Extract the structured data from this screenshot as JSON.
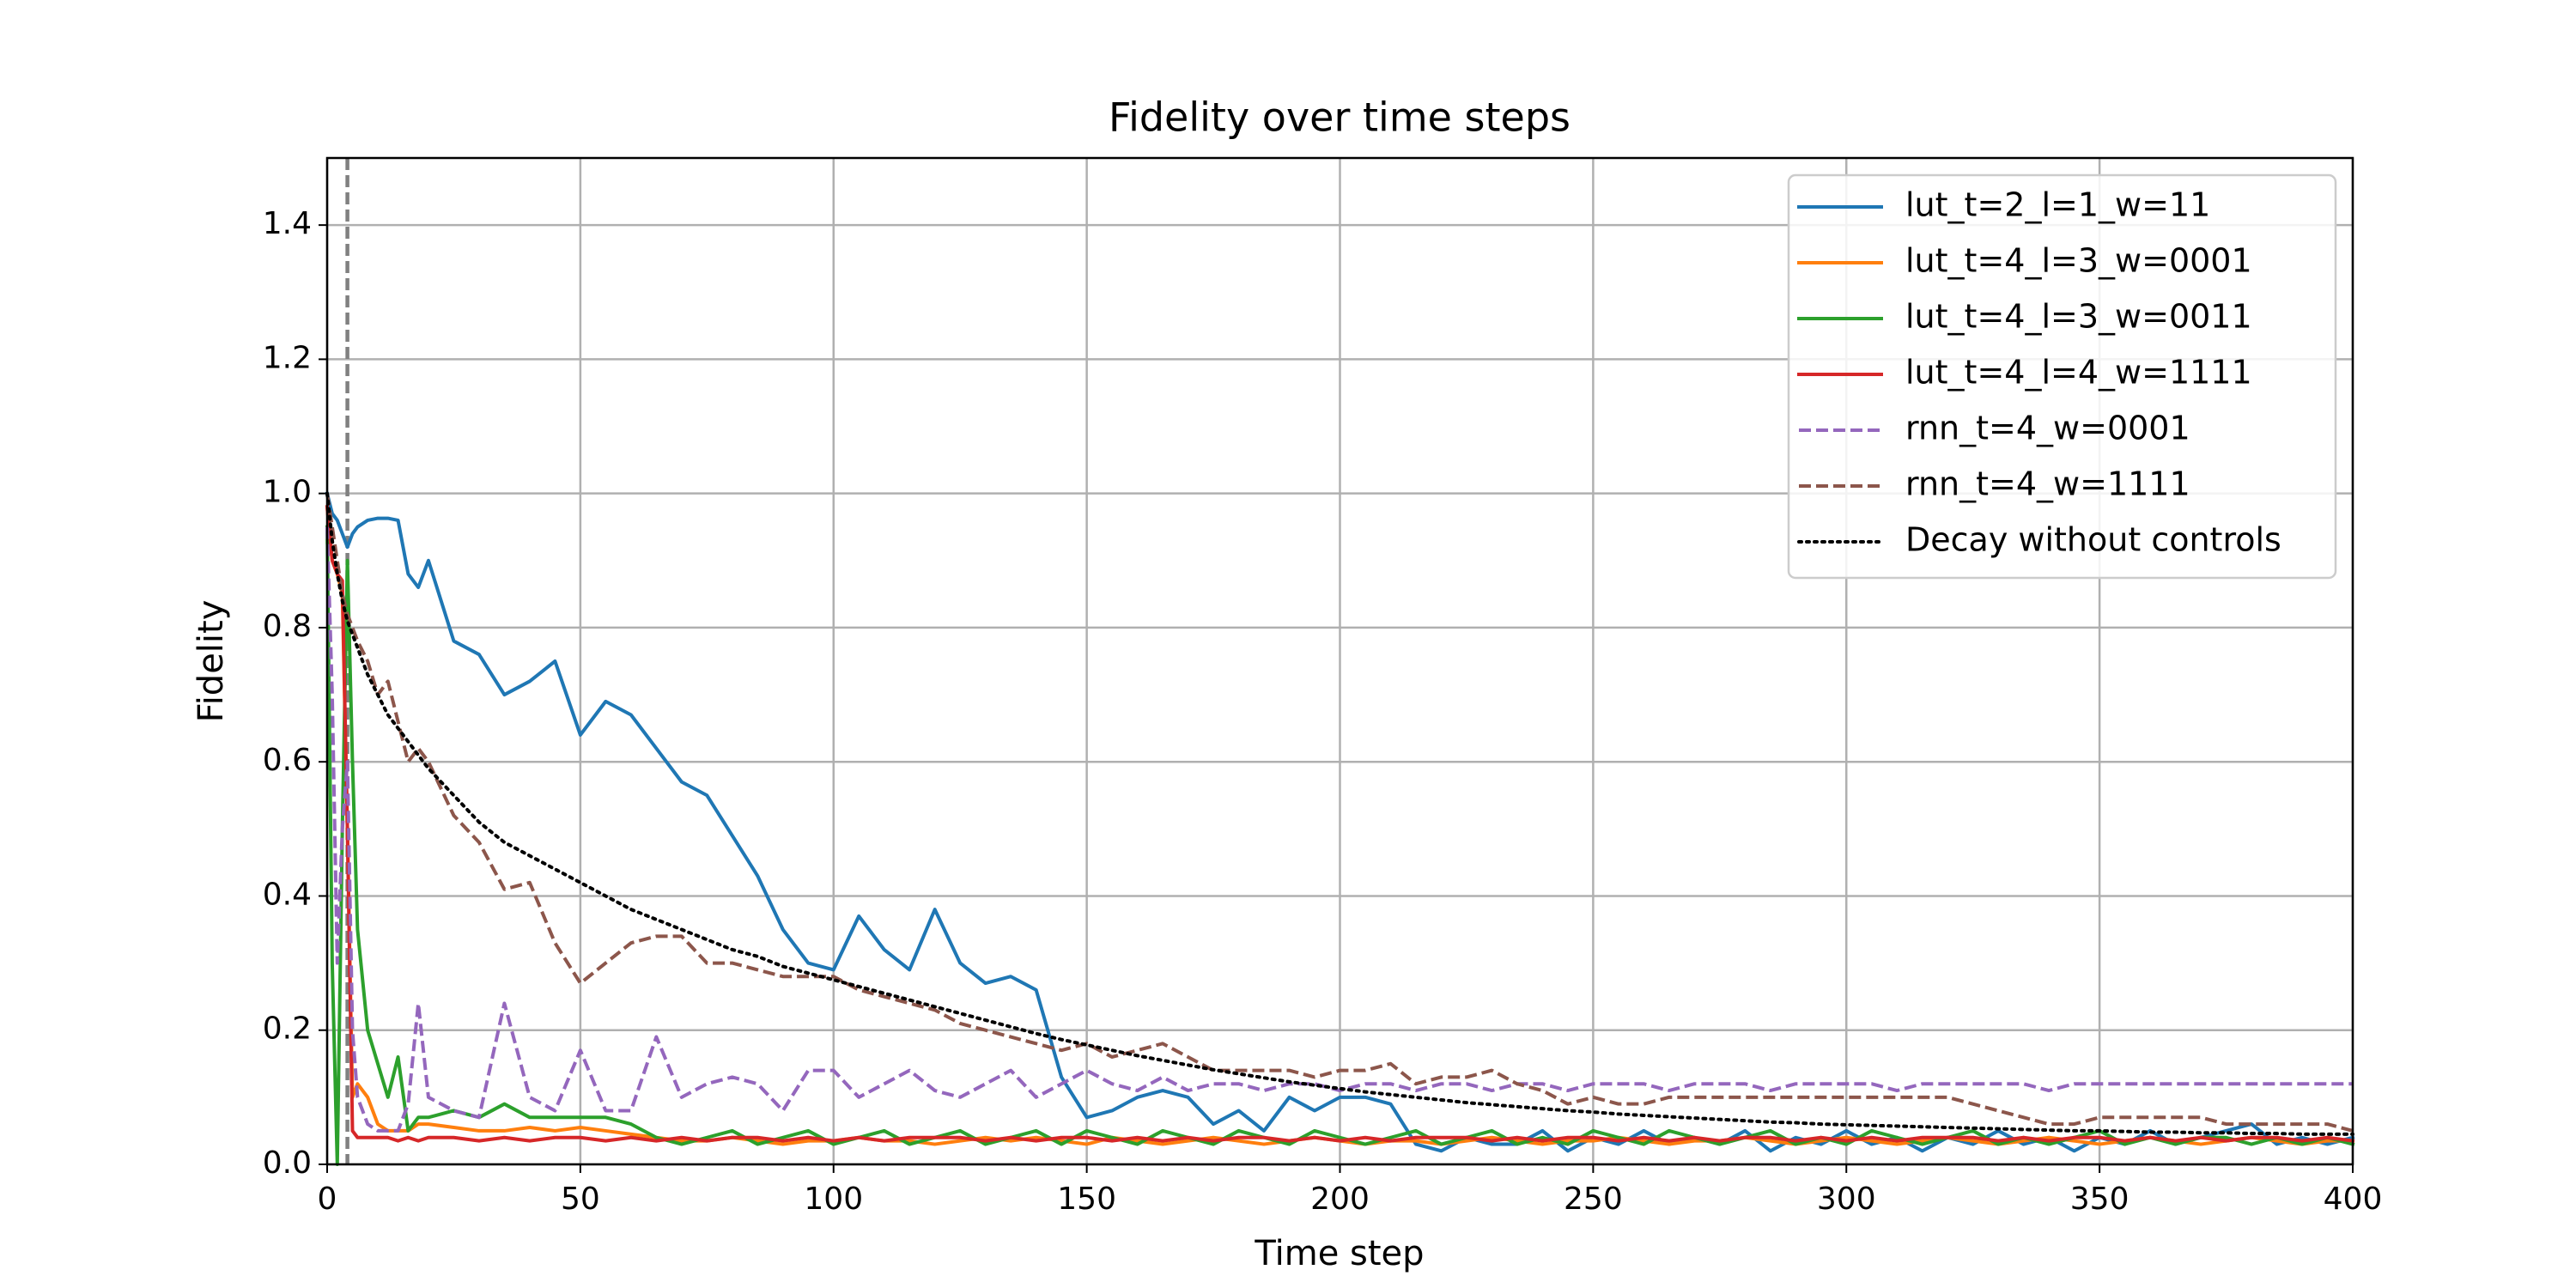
{
  "chart_data": {
    "type": "line",
    "title": "Fidelity over time steps",
    "x_label": "Time step",
    "y_label": "Fidelity",
    "xlim": [
      0,
      400
    ],
    "xticks": [
      0,
      50,
      100,
      150,
      200,
      250,
      300,
      350,
      400
    ],
    "ylim": [
      0,
      1.5
    ],
    "yticks": [
      {
        "value": 0,
        "label": "0.0"
      },
      0.2,
      0.4,
      0.6,
      0.8,
      {
        "value": 1,
        "label": "1.0"
      },
      1.2,
      1.4
    ],
    "grid": true,
    "legend": "upper right",
    "vline": 4,
    "x": [
      0,
      1,
      2,
      3,
      4,
      5,
      6,
      8,
      10,
      12,
      14,
      16,
      18,
      20,
      25,
      30,
      35,
      40,
      45,
      50,
      55,
      60,
      65,
      70,
      75,
      80,
      85,
      90,
      95,
      100,
      105,
      110,
      115,
      120,
      125,
      130,
      135,
      140,
      145,
      150,
      155,
      160,
      165,
      170,
      175,
      180,
      185,
      190,
      195,
      200,
      205,
      210,
      215,
      220,
      225,
      230,
      235,
      240,
      245,
      250,
      255,
      260,
      265,
      270,
      275,
      280,
      285,
      290,
      295,
      300,
      305,
      310,
      315,
      320,
      325,
      330,
      335,
      340,
      345,
      350,
      355,
      360,
      365,
      370,
      375,
      380,
      385,
      390,
      395,
      400
    ],
    "series": [
      {
        "name": "lut_t=2_l=1_w=11",
        "color": "#1f77b4",
        "linestyle": "solid",
        "values": [
          1.0,
          0.97,
          0.96,
          0.94,
          0.92,
          0.94,
          0.95,
          0.96,
          0.963,
          0.963,
          0.96,
          0.88,
          0.86,
          0.9,
          0.78,
          0.76,
          0.7,
          0.72,
          0.75,
          0.64,
          0.69,
          0.67,
          0.62,
          0.57,
          0.55,
          0.49,
          0.43,
          0.35,
          0.3,
          0.29,
          0.37,
          0.32,
          0.29,
          0.38,
          0.3,
          0.27,
          0.28,
          0.26,
          0.13,
          0.07,
          0.08,
          0.1,
          0.11,
          0.1,
          0.06,
          0.08,
          0.05,
          0.1,
          0.08,
          0.1,
          0.1,
          0.09,
          0.03,
          0.02,
          0.04,
          0.03,
          0.03,
          0.05,
          0.02,
          0.04,
          0.03,
          0.05,
          0.03,
          0.04,
          0.03,
          0.05,
          0.02,
          0.04,
          0.03,
          0.05,
          0.03,
          0.04,
          0.02,
          0.04,
          0.03,
          0.05,
          0.03,
          0.04,
          0.02,
          0.04,
          0.03,
          0.05,
          0.03,
          0.04,
          0.05,
          0.06,
          0.03,
          0.04,
          0.03,
          0.04
        ]
      },
      {
        "name": "lut_t=4_l=3_w=0001",
        "color": "#ff7f0e",
        "linestyle": "solid",
        "values": [
          0.98,
          0.9,
          0.88,
          0.85,
          0.5,
          0.1,
          0.12,
          0.1,
          0.06,
          0.05,
          0.05,
          0.05,
          0.06,
          0.06,
          0.055,
          0.05,
          0.05,
          0.055,
          0.05,
          0.055,
          0.05,
          0.045,
          0.04,
          0.035,
          0.035,
          0.04,
          0.035,
          0.03,
          0.035,
          0.035,
          0.04,
          0.035,
          0.035,
          0.03,
          0.035,
          0.04,
          0.035,
          0.04,
          0.035,
          0.03,
          0.04,
          0.035,
          0.03,
          0.035,
          0.04,
          0.035,
          0.03,
          0.035,
          0.04,
          0.035,
          0.03,
          0.035,
          0.035,
          0.03,
          0.035,
          0.04,
          0.035,
          0.03,
          0.035,
          0.035,
          0.04,
          0.035,
          0.03,
          0.035,
          0.035,
          0.04,
          0.035,
          0.03,
          0.035,
          0.04,
          0.035,
          0.03,
          0.035,
          0.04,
          0.035,
          0.03,
          0.035,
          0.04,
          0.035,
          0.03,
          0.035,
          0.04,
          0.035,
          0.03,
          0.035,
          0.04,
          0.035,
          0.03,
          0.035,
          0.035
        ]
      },
      {
        "name": "lut_t=4_l=3_w=0011",
        "color": "#2ca02c",
        "linestyle": "solid",
        "values": [
          0.95,
          0.3,
          0.0,
          0.5,
          0.9,
          0.6,
          0.35,
          0.2,
          0.15,
          0.1,
          0.16,
          0.05,
          0.07,
          0.07,
          0.08,
          0.07,
          0.09,
          0.07,
          0.07,
          0.07,
          0.07,
          0.06,
          0.04,
          0.03,
          0.04,
          0.05,
          0.03,
          0.04,
          0.05,
          0.03,
          0.04,
          0.05,
          0.03,
          0.04,
          0.05,
          0.03,
          0.04,
          0.05,
          0.03,
          0.05,
          0.04,
          0.03,
          0.05,
          0.04,
          0.03,
          0.05,
          0.04,
          0.03,
          0.05,
          0.04,
          0.03,
          0.04,
          0.05,
          0.03,
          0.04,
          0.05,
          0.03,
          0.04,
          0.03,
          0.05,
          0.04,
          0.03,
          0.05,
          0.04,
          0.03,
          0.04,
          0.05,
          0.03,
          0.04,
          0.03,
          0.05,
          0.04,
          0.03,
          0.04,
          0.05,
          0.03,
          0.04,
          0.03,
          0.04,
          0.05,
          0.03,
          0.04,
          0.03,
          0.04,
          0.04,
          0.03,
          0.04,
          0.03,
          0.04,
          0.03
        ]
      },
      {
        "name": "lut_t=4_l=4_w=1111",
        "color": "#d62728",
        "linestyle": "solid",
        "values": [
          0.98,
          0.9,
          0.88,
          0.87,
          0.5,
          0.05,
          0.04,
          0.04,
          0.04,
          0.04,
          0.035,
          0.04,
          0.035,
          0.04,
          0.04,
          0.035,
          0.04,
          0.035,
          0.04,
          0.04,
          0.035,
          0.04,
          0.035,
          0.04,
          0.035,
          0.04,
          0.04,
          0.035,
          0.04,
          0.035,
          0.04,
          0.035,
          0.04,
          0.04,
          0.04,
          0.035,
          0.04,
          0.035,
          0.04,
          0.04,
          0.035,
          0.04,
          0.035,
          0.04,
          0.035,
          0.04,
          0.04,
          0.035,
          0.04,
          0.035,
          0.04,
          0.035,
          0.04,
          0.04,
          0.04,
          0.035,
          0.04,
          0.035,
          0.04,
          0.04,
          0.035,
          0.04,
          0.035,
          0.04,
          0.035,
          0.04,
          0.04,
          0.035,
          0.04,
          0.035,
          0.04,
          0.035,
          0.04,
          0.04,
          0.04,
          0.035,
          0.04,
          0.035,
          0.04,
          0.04,
          0.035,
          0.04,
          0.035,
          0.04,
          0.035,
          0.04,
          0.04,
          0.035,
          0.04,
          0.035
        ]
      },
      {
        "name": "rnn_t=4_w=0001",
        "color": "#9467bd",
        "linestyle": "dashed",
        "values": [
          0.95,
          0.7,
          0.3,
          0.5,
          0.6,
          0.2,
          0.1,
          0.06,
          0.05,
          0.05,
          0.05,
          0.09,
          0.24,
          0.1,
          0.08,
          0.07,
          0.24,
          0.1,
          0.08,
          0.17,
          0.08,
          0.08,
          0.19,
          0.1,
          0.12,
          0.13,
          0.12,
          0.08,
          0.14,
          0.14,
          0.1,
          0.12,
          0.14,
          0.11,
          0.1,
          0.12,
          0.14,
          0.1,
          0.12,
          0.14,
          0.12,
          0.11,
          0.13,
          0.11,
          0.12,
          0.12,
          0.11,
          0.12,
          0.12,
          0.11,
          0.12,
          0.12,
          0.11,
          0.12,
          0.12,
          0.11,
          0.12,
          0.12,
          0.11,
          0.12,
          0.12,
          0.12,
          0.11,
          0.12,
          0.12,
          0.12,
          0.11,
          0.12,
          0.12,
          0.12,
          0.12,
          0.11,
          0.12,
          0.12,
          0.12,
          0.12,
          0.12,
          0.11,
          0.12,
          0.12,
          0.12,
          0.12,
          0.12,
          0.12,
          0.12,
          0.12,
          0.12,
          0.12,
          0.12,
          0.12
        ]
      },
      {
        "name": "rnn_t=4_w=1111",
        "color": "#8c564b",
        "linestyle": "dashed",
        "values": [
          1.0,
          0.95,
          0.9,
          0.85,
          0.82,
          0.8,
          0.78,
          0.75,
          0.7,
          0.72,
          0.66,
          0.6,
          0.62,
          0.6,
          0.52,
          0.48,
          0.41,
          0.42,
          0.33,
          0.27,
          0.3,
          0.33,
          0.34,
          0.34,
          0.3,
          0.3,
          0.29,
          0.28,
          0.28,
          0.28,
          0.26,
          0.25,
          0.24,
          0.23,
          0.21,
          0.2,
          0.19,
          0.18,
          0.17,
          0.18,
          0.16,
          0.17,
          0.18,
          0.16,
          0.14,
          0.14,
          0.14,
          0.14,
          0.13,
          0.14,
          0.14,
          0.15,
          0.12,
          0.13,
          0.13,
          0.14,
          0.12,
          0.11,
          0.09,
          0.1,
          0.09,
          0.09,
          0.1,
          0.1,
          0.1,
          0.1,
          0.1,
          0.1,
          0.1,
          0.1,
          0.1,
          0.1,
          0.1,
          0.1,
          0.09,
          0.08,
          0.07,
          0.06,
          0.06,
          0.07,
          0.07,
          0.07,
          0.07,
          0.07,
          0.06,
          0.06,
          0.06,
          0.06,
          0.06,
          0.05
        ]
      },
      {
        "name": "Decay without controls",
        "color": "#000000",
        "linestyle": "dotted",
        "values": [
          1.0,
          0.93,
          0.88,
          0.84,
          0.81,
          0.79,
          0.77,
          0.73,
          0.7,
          0.67,
          0.65,
          0.63,
          0.61,
          0.59,
          0.55,
          0.51,
          0.48,
          0.46,
          0.44,
          0.42,
          0.4,
          0.38,
          0.365,
          0.35,
          0.335,
          0.32,
          0.31,
          0.295,
          0.285,
          0.275,
          0.265,
          0.255,
          0.245,
          0.235,
          0.225,
          0.215,
          0.205,
          0.195,
          0.186,
          0.178,
          0.17,
          0.162,
          0.155,
          0.148,
          0.141,
          0.135,
          0.129,
          0.123,
          0.118,
          0.113,
          0.108,
          0.104,
          0.1,
          0.096,
          0.092,
          0.089,
          0.086,
          0.083,
          0.08,
          0.078,
          0.075,
          0.073,
          0.071,
          0.069,
          0.067,
          0.065,
          0.063,
          0.062,
          0.06,
          0.059,
          0.058,
          0.057,
          0.056,
          0.055,
          0.054,
          0.053,
          0.052,
          0.051,
          0.05,
          0.05,
          0.049,
          0.048,
          0.048,
          0.047,
          0.047,
          0.046,
          0.046,
          0.045,
          0.045,
          0.045
        ]
      }
    ]
  }
}
